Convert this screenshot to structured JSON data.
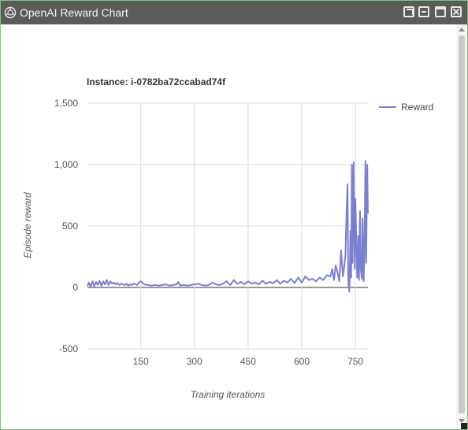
{
  "window": {
    "title": "OpenAI Reward Chart",
    "controls": [
      "restore",
      "minimize",
      "maximize",
      "close"
    ]
  },
  "chart_data": {
    "type": "line",
    "title": "Instance: i-0782ba72ccabad74f",
    "xlabel": "Training iterations",
    "ylabel": "Episode reward",
    "xlim": [
      1,
      785
    ],
    "ylim": [
      -500,
      1500
    ],
    "xticks": [
      150,
      300,
      450,
      600,
      750
    ],
    "yticks": [
      -500,
      0,
      500,
      1000,
      1500
    ],
    "ytick_labels": [
      "-500",
      "0",
      "500",
      "1,000",
      "1,500"
    ],
    "grid": true,
    "legend_position": "top-right",
    "line_color": "#7b7fd0",
    "series": [
      {
        "name": "Reward",
        "x": [
          1,
          5,
          10,
          15,
          20,
          25,
          30,
          35,
          40,
          45,
          50,
          55,
          60,
          65,
          70,
          75,
          80,
          85,
          90,
          95,
          100,
          105,
          110,
          115,
          120,
          125,
          130,
          135,
          140,
          145,
          150,
          160,
          170,
          180,
          190,
          200,
          210,
          220,
          230,
          240,
          250,
          255,
          260,
          270,
          280,
          290,
          300,
          310,
          320,
          330,
          340,
          350,
          360,
          370,
          380,
          390,
          400,
          410,
          420,
          430,
          440,
          450,
          460,
          470,
          480,
          490,
          500,
          510,
          520,
          530,
          540,
          550,
          560,
          570,
          580,
          590,
          600,
          610,
          620,
          630,
          640,
          650,
          660,
          670,
          680,
          685,
          690,
          695,
          700,
          705,
          710,
          715,
          718,
          722,
          725,
          728,
          730,
          733,
          736,
          738,
          740,
          742,
          745,
          748,
          750,
          753,
          755,
          758,
          760,
          763,
          765,
          768,
          770,
          773,
          775,
          778,
          780,
          783,
          785
        ],
        "values": [
          10,
          40,
          5,
          50,
          10,
          45,
          20,
          55,
          15,
          50,
          25,
          60,
          20,
          50,
          30,
          40,
          25,
          35,
          20,
          30,
          25,
          20,
          30,
          15,
          25,
          20,
          30,
          25,
          20,
          40,
          50,
          25,
          20,
          15,
          20,
          15,
          20,
          25,
          15,
          20,
          25,
          45,
          15,
          20,
          15,
          20,
          25,
          30,
          20,
          15,
          20,
          40,
          25,
          20,
          30,
          50,
          20,
          60,
          30,
          45,
          25,
          50,
          30,
          40,
          25,
          55,
          30,
          45,
          35,
          60,
          30,
          55,
          40,
          70,
          35,
          80,
          40,
          90,
          60,
          70,
          50,
          80,
          60,
          100,
          90,
          150,
          60,
          180,
          120,
          50,
          300,
          90,
          150,
          260,
          600,
          840,
          50,
          -35,
          460,
          80,
          1000,
          200,
          1020,
          150,
          720,
          300,
          80,
          420,
          60,
          620,
          150,
          70,
          560,
          50,
          280,
          1030,
          200,
          1000,
          600
        ]
      }
    ]
  }
}
